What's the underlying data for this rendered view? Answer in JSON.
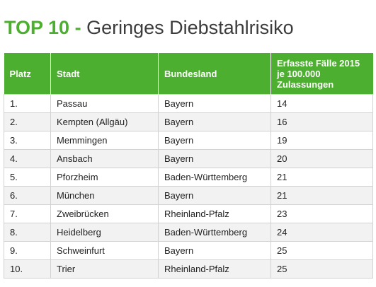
{
  "title": {
    "accent": "TOP 10 -",
    "text": " Geringes Diebstahlrisiko"
  },
  "table": {
    "headers": {
      "platz": "Platz",
      "stadt": "Stadt",
      "bundesland": "Bundesland",
      "faelle": "Erfasste Fälle 2015 je 100.000 Zulassungen"
    },
    "rows": [
      {
        "platz": "1.",
        "stadt": "Passau",
        "bundesland": "Bayern",
        "faelle": "14"
      },
      {
        "platz": "2.",
        "stadt": "Kempten (Allgäu)",
        "bundesland": "Bayern",
        "faelle": "16"
      },
      {
        "platz": "3.",
        "stadt": "Memmingen",
        "bundesland": "Bayern",
        "faelle": "19"
      },
      {
        "platz": "4.",
        "stadt": "Ansbach",
        "bundesland": "Bayern",
        "faelle": "20"
      },
      {
        "platz": "5.",
        "stadt": "Pforzheim",
        "bundesland": "Baden-Württemberg",
        "faelle": "21"
      },
      {
        "platz": "6.",
        "stadt": "München",
        "bundesland": "Bayern",
        "faelle": "21"
      },
      {
        "platz": "7.",
        "stadt": "Zweibrücken",
        "bundesland": "Rheinland-Pfalz",
        "faelle": "23"
      },
      {
        "platz": "8.",
        "stadt": "Heidelberg",
        "bundesland": "Baden-Württemberg",
        "faelle": "24"
      },
      {
        "platz": "9.",
        "stadt": "Schweinfurt",
        "bundesland": "Bayern",
        "faelle": "25"
      },
      {
        "platz": "10.",
        "stadt": "Trier",
        "bundesland": "Rheinland-Pfalz",
        "faelle": "25"
      }
    ]
  },
  "colors": {
    "accent": "#4caf2f",
    "row_alt": "#f2f2f2",
    "border": "#d2d2d2"
  }
}
